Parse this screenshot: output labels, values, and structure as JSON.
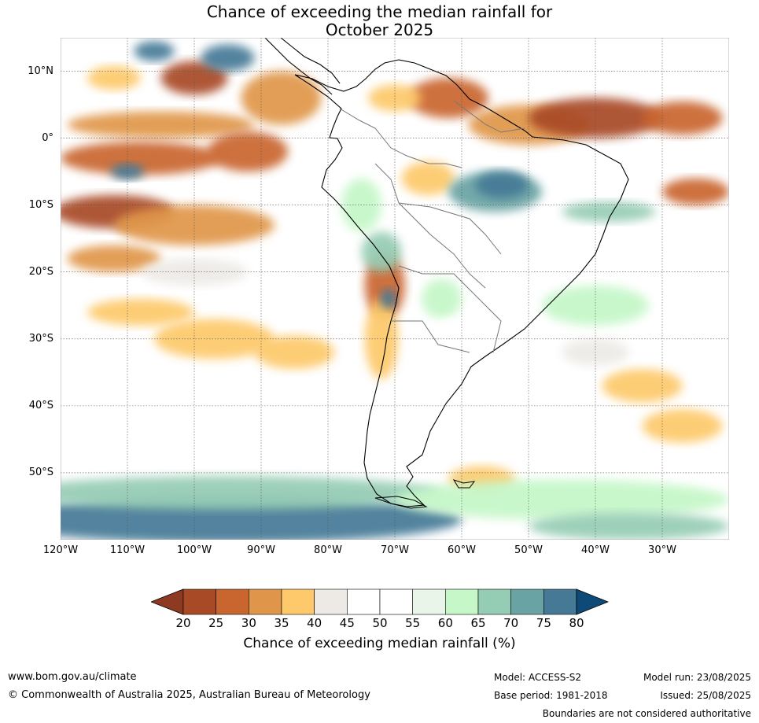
{
  "title": {
    "line1": "Chance of exceeding the median rainfall for",
    "line2": "October 2025"
  },
  "latitude_labels": [
    {
      "text": "10°N",
      "deg": 10
    },
    {
      "text": "0°",
      "deg": 0
    },
    {
      "text": "10°S",
      "deg": -10
    },
    {
      "text": "20°S",
      "deg": -20
    },
    {
      "text": "30°S",
      "deg": -30
    },
    {
      "text": "40°S",
      "deg": -40
    },
    {
      "text": "50°S",
      "deg": -50
    }
  ],
  "longitude_labels": [
    {
      "text": "120°W",
      "deg": -120
    },
    {
      "text": "110°W",
      "deg": -110
    },
    {
      "text": "100°W",
      "deg": -100
    },
    {
      "text": "90°W",
      "deg": -90
    },
    {
      "text": "80°W",
      "deg": -80
    },
    {
      "text": "70°W",
      "deg": -70
    },
    {
      "text": "60°W",
      "deg": -60
    },
    {
      "text": "50°W",
      "deg": -50
    },
    {
      "text": "40°W",
      "deg": -40
    },
    {
      "text": "30°W",
      "deg": -30
    }
  ],
  "colorbar": {
    "ticks": [
      "20",
      "25",
      "30",
      "35",
      "40",
      "45",
      "50",
      "55",
      "60",
      "65",
      "70",
      "75",
      "80"
    ],
    "below_color": "#8e3a22",
    "above_color": "#0d4a78",
    "colors": [
      "#a84a26",
      "#c9652f",
      "#e0964a",
      "#fdc96a",
      "#edeae6",
      "#ffffff",
      "#ffffff",
      "#e9f5e8",
      "#c5f7c8",
      "#95ccb4",
      "#69a3a3",
      "#457996"
    ],
    "label": "Chance of exceeding median rainfall (%)"
  },
  "footer": {
    "website": "www.bom.gov.au/climate",
    "copyright": "© Commonwealth of Australia 2025, Australian Bureau of Meteorology",
    "model": "Model: ACCESS-S2",
    "base_period": "Base period: 1981-2018",
    "model_run": "Model run: 23/08/2025",
    "issued": "Issued: 25/08/2025",
    "disclaimer": "Boundaries are not considered authoritative"
  },
  "map_data": {
    "extent": {
      "lon": [
        -120,
        -20
      ],
      "lat": [
        -60,
        15
      ]
    },
    "blobs": [
      {
        "lon": -100,
        "lat": 9,
        "rx": 5,
        "ry": 2.5,
        "pct": 20
      },
      {
        "lon": -87,
        "lat": 6,
        "rx": 6,
        "ry": 4,
        "pct": 30
      },
      {
        "lon": -112,
        "lat": 9,
        "rx": 4,
        "ry": 1.8,
        "pct": 35
      },
      {
        "lon": -105,
        "lat": 2,
        "rx": 14,
        "ry": 2,
        "pct": 30
      },
      {
        "lon": -108,
        "lat": -3,
        "rx": 12,
        "ry": 2.5,
        "pct": 25
      },
      {
        "lon": -92,
        "lat": -2,
        "rx": 6,
        "ry": 3,
        "pct": 25
      },
      {
        "lon": -112,
        "lat": -11,
        "rx": 9,
        "ry": 2.5,
        "pct": 20
      },
      {
        "lon": -100,
        "lat": -13,
        "rx": 12,
        "ry": 3,
        "pct": 30
      },
      {
        "lon": -112,
        "lat": -18,
        "rx": 7,
        "ry": 2,
        "pct": 30
      },
      {
        "lon": -108,
        "lat": -26,
        "rx": 8,
        "ry": 2,
        "pct": 35
      },
      {
        "lon": -97,
        "lat": -30,
        "rx": 9,
        "ry": 3,
        "pct": 35
      },
      {
        "lon": -85,
        "lat": -32,
        "rx": 6,
        "ry": 2.5,
        "pct": 35
      },
      {
        "lon": -100,
        "lat": -20,
        "rx": 8,
        "ry": 2,
        "pct": 40
      },
      {
        "lon": -71.5,
        "lat": -22,
        "rx": 3,
        "ry": 5,
        "pct": 25
      },
      {
        "lon": -72,
        "lat": -30,
        "rx": 2.5,
        "ry": 6,
        "pct": 35
      },
      {
        "lon": -62,
        "lat": 6,
        "rx": 6,
        "ry": 3,
        "pct": 25
      },
      {
        "lon": -50,
        "lat": 2,
        "rx": 9,
        "ry": 3,
        "pct": 30
      },
      {
        "lon": -40,
        "lat": 3,
        "rx": 10,
        "ry": 3,
        "pct": 20
      },
      {
        "lon": -27,
        "lat": 3,
        "rx": 6,
        "ry": 2.5,
        "pct": 25
      },
      {
        "lon": -65,
        "lat": -6,
        "rx": 4,
        "ry": 2.5,
        "pct": 35
      },
      {
        "lon": -25,
        "lat": -8,
        "rx": 5,
        "ry": 2,
        "pct": 25
      },
      {
        "lon": -33,
        "lat": -37,
        "rx": 6,
        "ry": 2.5,
        "pct": 35
      },
      {
        "lon": -27,
        "lat": -43,
        "rx": 6,
        "ry": 2.5,
        "pct": 35
      },
      {
        "lon": -40,
        "lat": -32,
        "rx": 5,
        "ry": 2,
        "pct": 40
      },
      {
        "lon": -57,
        "lat": -51,
        "rx": 5,
        "ry": 2,
        "pct": 35
      },
      {
        "lon": -70,
        "lat": 6,
        "rx": 4,
        "ry": 2,
        "pct": 35
      },
      {
        "lon": -95,
        "lat": 12,
        "rx": 4,
        "ry": 2,
        "pct": 75
      },
      {
        "lon": -106,
        "lat": 13,
        "rx": 3,
        "ry": 1.5,
        "pct": 75
      },
      {
        "lon": -110,
        "lat": -5,
        "rx": 2.5,
        "ry": 1.2,
        "pct": 75
      },
      {
        "lon": -55,
        "lat": -8,
        "rx": 7,
        "ry": 3,
        "pct": 70
      },
      {
        "lon": -54,
        "lat": -7,
        "rx": 4,
        "ry": 2,
        "pct": 75
      },
      {
        "lon": -72,
        "lat": -17,
        "rx": 3,
        "ry": 3,
        "pct": 65
      },
      {
        "lon": -71,
        "lat": -24,
        "rx": 1.2,
        "ry": 1.5,
        "pct": 75
      },
      {
        "lon": -38,
        "lat": -11,
        "rx": 7,
        "ry": 1.5,
        "pct": 65
      },
      {
        "lon": -63,
        "lat": -24,
        "rx": 3,
        "ry": 3,
        "pct": 60
      },
      {
        "lon": -40,
        "lat": -25,
        "rx": 8,
        "ry": 3,
        "pct": 60
      },
      {
        "lon": -75,
        "lat": -10,
        "rx": 3,
        "ry": 4,
        "pct": 60
      },
      {
        "lon": -95,
        "lat": -57,
        "rx": 35,
        "ry": 3.5,
        "pct": 75
      },
      {
        "lon": -95,
        "lat": -53,
        "rx": 32,
        "ry": 2.5,
        "pct": 65
      },
      {
        "lon": -45,
        "lat": -54,
        "rx": 25,
        "ry": 3,
        "pct": 60
      },
      {
        "lon": -35,
        "lat": -58,
        "rx": 15,
        "ry": 2,
        "pct": 65
      },
      {
        "lon": -60,
        "lat": -30,
        "rx": 6,
        "ry": 3,
        "pct": 45
      },
      {
        "lon": -85,
        "lat": -45,
        "rx": 8,
        "ry": 3,
        "pct": 45
      }
    ]
  }
}
